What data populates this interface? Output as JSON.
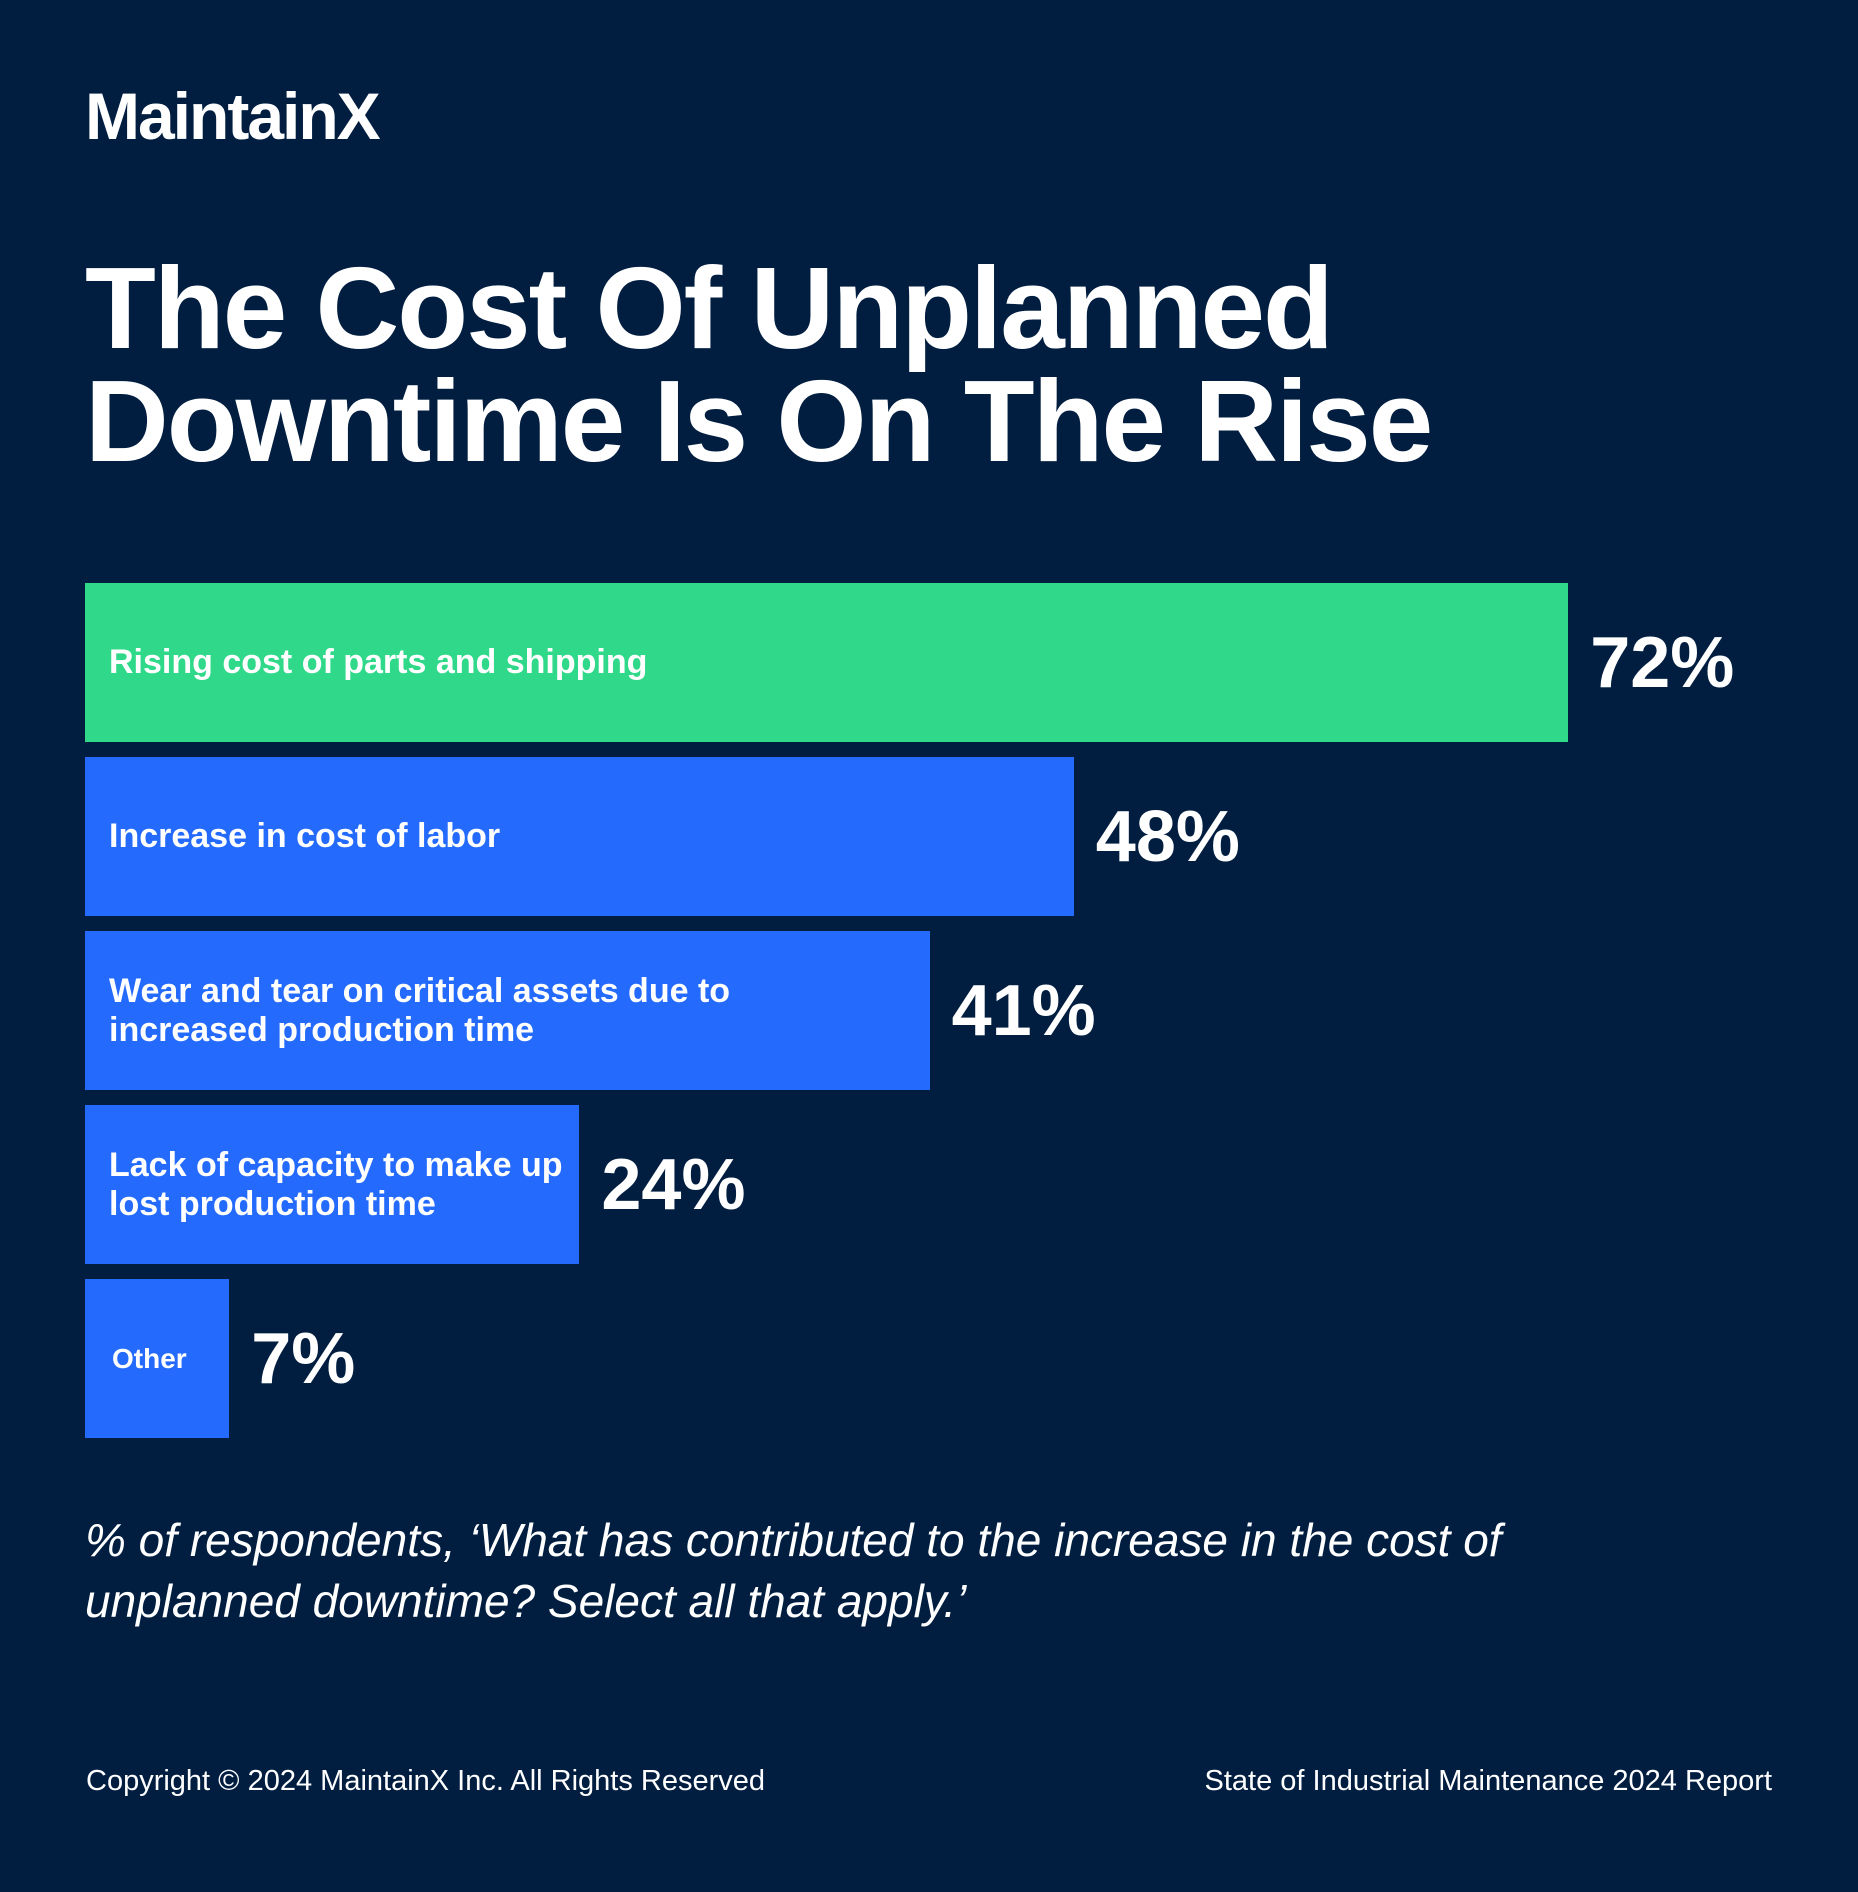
{
  "brand": {
    "logo": "MaintainX"
  },
  "title": "The Cost Of Unplanned Downtime Is On The Rise",
  "chart_data": {
    "type": "bar",
    "orientation": "horizontal",
    "title": "The Cost Of Unplanned Downtime Is On The Rise",
    "categories": [
      "Rising cost of parts and shipping",
      "Increase in cost of labor",
      "Wear and tear on critical assets due to increased production time",
      "Lack of capacity to make up lost production time",
      "Other"
    ],
    "values": [
      72,
      48,
      41,
      24,
      7
    ],
    "value_labels": [
      "72%",
      "48%",
      "41%",
      "24%",
      "7%"
    ],
    "colors": [
      "#30d98a",
      "#246bfd",
      "#246bfd",
      "#246bfd",
      "#246bfd"
    ],
    "unit": "%",
    "grid": false,
    "xlim": [
      0,
      100
    ]
  },
  "note": "% of respondents, ‘What has contributed to the increase in the cost of unplanned downtime? Select all that apply.’",
  "footer": {
    "copyright": "Copyright © 2024 MaintainX Inc. All Rights Reserved",
    "report": "State of Industrial Maintenance 2024 Report"
  },
  "colors": {
    "background": "#011e41",
    "highlight": "#30d98a",
    "bar": "#246bfd"
  }
}
